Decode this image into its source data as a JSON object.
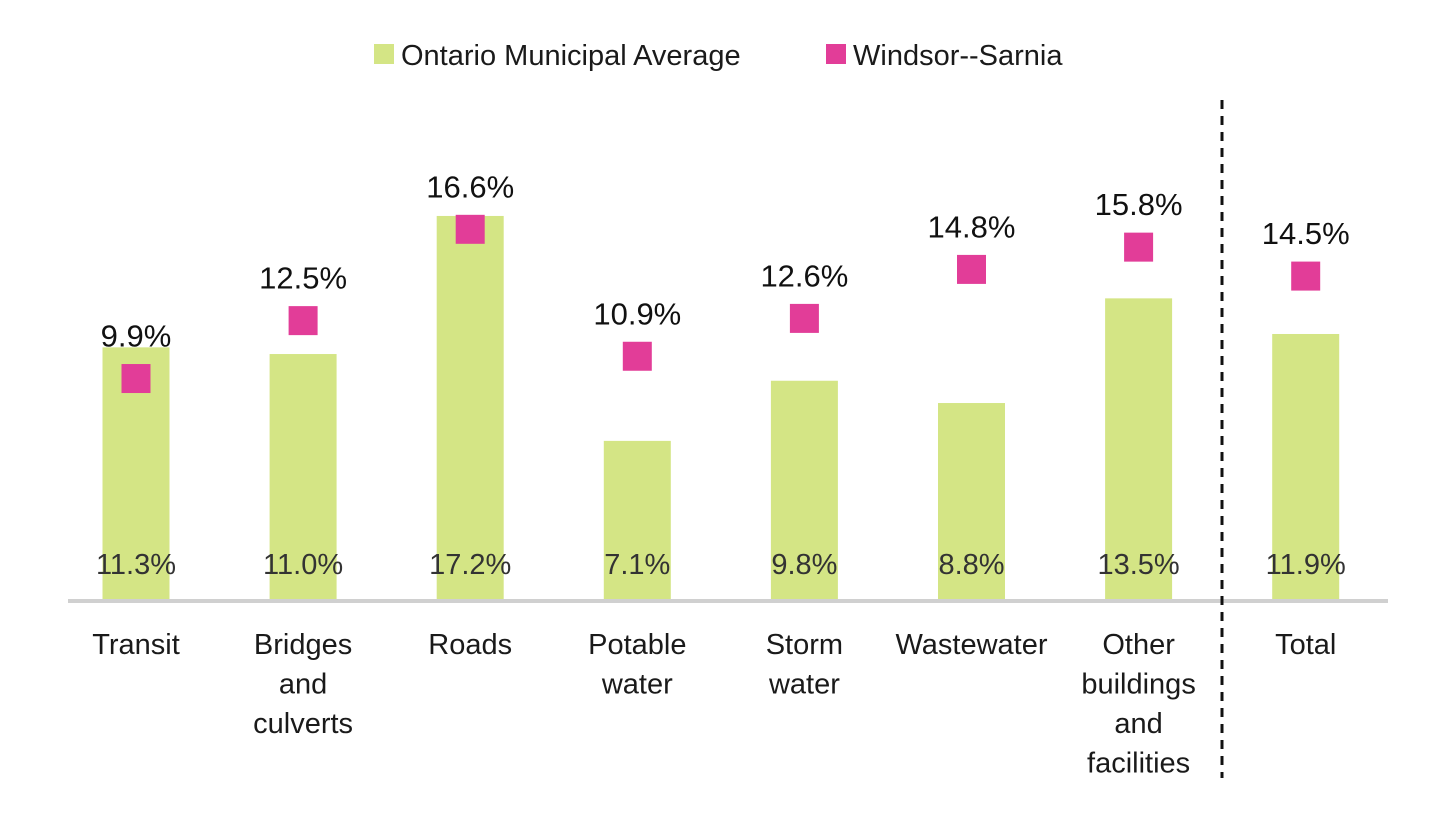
{
  "chart_data": {
    "type": "bar",
    "categories": [
      [
        "Transit"
      ],
      [
        "Bridges",
        "and",
        "culverts"
      ],
      [
        "Roads"
      ],
      [
        "Potable",
        "water"
      ],
      [
        "Storm",
        "water"
      ],
      [
        "Wastewater"
      ],
      [
        "Other",
        "buildings",
        "and",
        "facilities"
      ],
      [
        "Total"
      ]
    ],
    "series": [
      {
        "name": "Ontario Municipal Average",
        "type": "bar",
        "values": [
          11.3,
          11.0,
          17.2,
          7.1,
          9.8,
          8.8,
          13.5,
          11.9
        ],
        "labels": [
          "11.3%",
          "11.0%",
          "17.2%",
          "7.1%",
          "9.8%",
          "8.8%",
          "13.5%",
          "11.9%"
        ],
        "color": "#d4e585"
      },
      {
        "name": "Windsor--Sarnia",
        "type": "marker",
        "values": [
          9.9,
          12.5,
          16.6,
          10.9,
          12.6,
          14.8,
          15.8,
          14.5
        ],
        "labels": [
          "9.9%",
          "12.5%",
          "16.6%",
          "10.9%",
          "12.6%",
          "14.8%",
          "15.8%",
          "14.5%"
        ],
        "color": "#e23d98"
      }
    ],
    "ylim": [
      0,
      19
    ],
    "grid": false,
    "separator_before_index": 7,
    "legend_position": "top-center"
  }
}
